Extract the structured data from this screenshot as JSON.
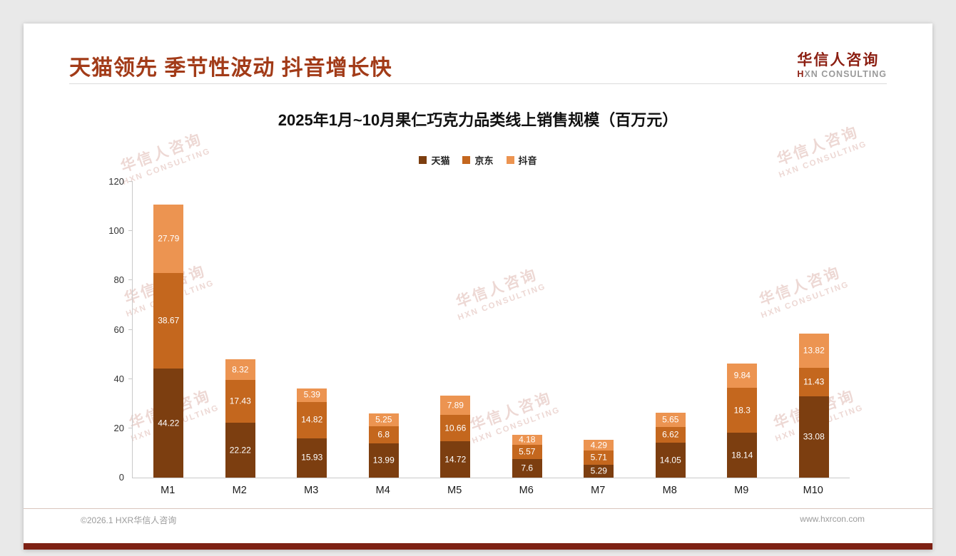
{
  "header": {
    "title": "天猫领先 季节性波动 抖音增长快",
    "title_color": "#a23b18",
    "logo_cn": "华信人咨询",
    "logo_en": "HXN CONSULTING"
  },
  "watermark": {
    "line1": "华信人咨询",
    "line2": "HXN CONSULTING"
  },
  "footer": {
    "left": "©2026.1 HXR华信人咨询",
    "right": "www.hxrcon.com"
  },
  "chart_data": {
    "type": "bar",
    "subtype": "stacked",
    "title": "2025年1月~10月果仁巧克力品类线上销售规模（百万元）",
    "categories": [
      "M1",
      "M2",
      "M3",
      "M4",
      "M5",
      "M6",
      "M7",
      "M8",
      "M9",
      "M10"
    ],
    "series": [
      {
        "name": "天猫",
        "color": "#7c3e10",
        "values": [
          44.22,
          22.22,
          15.93,
          13.99,
          14.72,
          7.6,
          5.29,
          14.05,
          18.14,
          33.08
        ]
      },
      {
        "name": "京东",
        "color": "#c4671e",
        "values": [
          38.67,
          17.43,
          14.82,
          6.8,
          10.66,
          5.57,
          5.71,
          6.62,
          18.3,
          11.43
        ]
      },
      {
        "name": "抖音",
        "color": "#ec9451",
        "values": [
          27.79,
          8.32,
          5.39,
          5.25,
          7.89,
          4.18,
          4.29,
          5.65,
          9.84,
          13.82
        ]
      }
    ],
    "xlabel": "",
    "ylabel": "",
    "ylim": [
      0,
      120
    ],
    "ytick_step": 20,
    "grid": false,
    "legend_position": "top",
    "value_labels": "inside-white"
  }
}
